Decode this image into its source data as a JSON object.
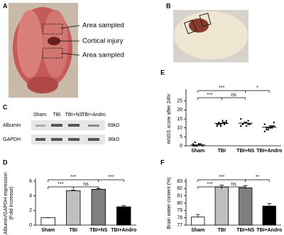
{
  "panels": {
    "a": {
      "label": "A",
      "annotations": [
        "Area sampled",
        "Cortical injury",
        "Area sampled"
      ]
    },
    "b": {
      "label": "B"
    },
    "c": {
      "label": "C",
      "lanes": [
        "Sham",
        "TBI",
        "TBI+NS",
        "TBI+Andro"
      ],
      "rows": [
        "Albumin",
        "GAPDH"
      ],
      "sizes": [
        "69kD",
        "36kD"
      ]
    }
  },
  "chart_data": [
    {
      "type": "bar",
      "label": "D",
      "ylabel": [
        "Albumin/GAPDH expression",
        "(Fold Increase)"
      ],
      "categories": [
        "Sham",
        "TBI",
        "TBI+NS",
        "TBI+Andro"
      ],
      "values": [
        1,
        4.7,
        4.9,
        2.5
      ],
      "errors": [
        0,
        0.1,
        0.1,
        0.15
      ],
      "colors": [
        "#ffffff",
        "#bfbfbf",
        "#7f7f7f",
        "#000000"
      ],
      "ylim": [
        0,
        6
      ],
      "yticks": [
        0,
        2,
        4,
        6
      ],
      "significance": [
        {
          "text": "***",
          "from": 0,
          "to": 2
        },
        {
          "text": "***",
          "from": 0,
          "to": 1
        },
        {
          "text": "ns",
          "from": 1,
          "to": 2
        },
        {
          "text": "***",
          "from": 2,
          "to": 3
        }
      ]
    },
    {
      "type": "strip",
      "label": "E",
      "ylabel": [
        "mNSS score after 24hr"
      ],
      "categories": [
        "Sham",
        "TBI",
        "TBI+NS",
        "TBI+Andro"
      ],
      "points": [
        [
          0,
          0,
          0,
          1,
          1,
          0,
          1,
          2,
          0,
          1
        ],
        [
          11,
          12,
          12,
          13,
          13,
          14,
          12,
          13,
          11,
          14,
          12,
          13
        ],
        [
          11,
          12,
          13,
          13,
          14,
          12,
          15,
          12,
          13,
          11,
          12
        ],
        [
          8,
          9,
          10,
          10,
          11,
          11,
          12,
          10,
          9,
          11,
          10,
          13
        ]
      ],
      "means": [
        0.5,
        12.5,
        12.6,
        10.4
      ],
      "ylim": [
        0,
        30
      ],
      "yticks": [
        0,
        5,
        10,
        15,
        20,
        25
      ],
      "significance": [
        {
          "text": "***",
          "from": 0,
          "to": 2
        },
        {
          "text": "***",
          "from": 0,
          "to": 1
        },
        {
          "text": "ns",
          "from": 1,
          "to": 2
        },
        {
          "text": "*",
          "from": 2,
          "to": 3
        }
      ]
    },
    {
      "type": "bar",
      "label": "F",
      "ylabel": [
        "Brain water content (%)"
      ],
      "categories": [
        "Sham",
        "TBI",
        "TBI+NS",
        "TBI+Andro"
      ],
      "values": [
        78.1,
        82.2,
        82.1,
        79.6
      ],
      "errors": [
        0.35,
        0.25,
        0.3,
        0.35
      ],
      "colors": [
        "#ffffff",
        "#bfbfbf",
        "#7f7f7f",
        "#000000"
      ],
      "ylim": [
        77,
        83
      ],
      "yticks": [
        77,
        78,
        79,
        80,
        81,
        82,
        83
      ],
      "significance": [
        {
          "text": "***",
          "from": 0,
          "to": 2
        },
        {
          "text": "***",
          "from": 0,
          "to": 1
        },
        {
          "text": "ns",
          "from": 1,
          "to": 2
        },
        {
          "text": "**",
          "from": 2,
          "to": 3
        }
      ]
    }
  ]
}
